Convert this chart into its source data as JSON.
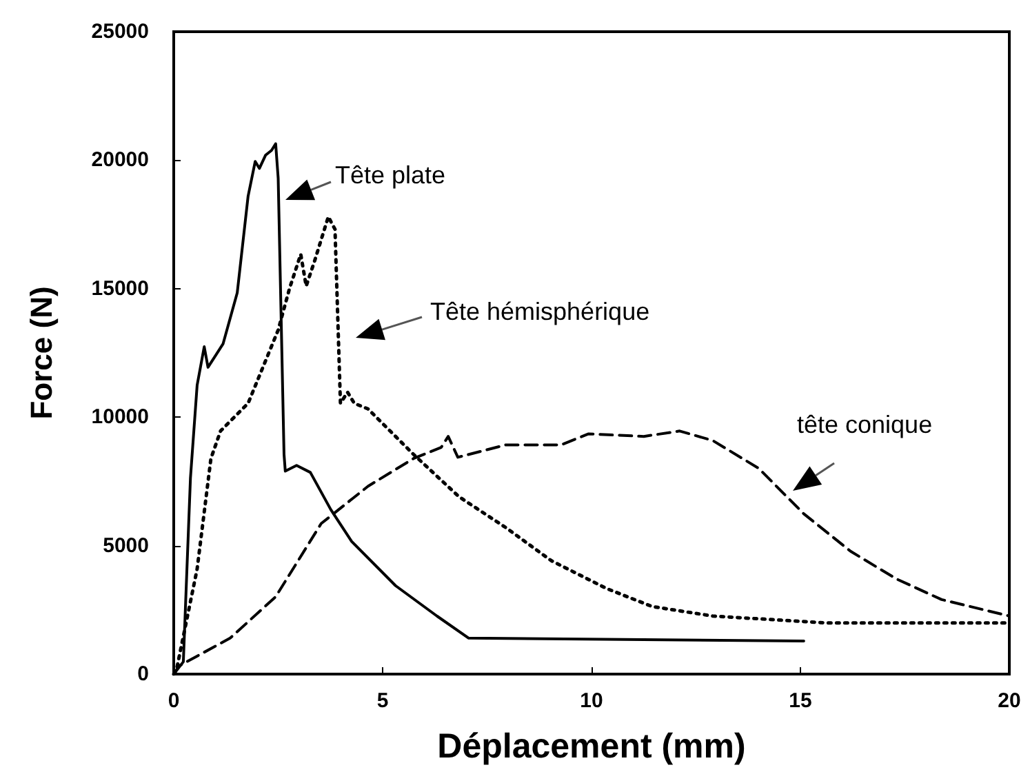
{
  "chart_data": {
    "type": "line",
    "xlabel": "Déplacement (mm)",
    "ylabel": "Force (N)",
    "xlim": [
      0,
      20
    ],
    "xticks": [
      0,
      5,
      10,
      15,
      20
    ],
    "ylim": [
      0,
      25000
    ],
    "yticks": [
      0,
      5000,
      10000,
      15000,
      20000,
      25000
    ],
    "grid": false,
    "marker": "none",
    "series": [
      {
        "color": "#000000",
        "line_style": "solid",
        "x": [
          0,
          0.23,
          0.4,
          0.56,
          0.73,
          0.82,
          1.18,
          1.52,
          1.78,
          1.95,
          2.05,
          2.2,
          2.34,
          2.44,
          2.5,
          2.64,
          2.67,
          2.94,
          3.27,
          3.76,
          4.26,
          5.31,
          6.3,
          7.06,
          15.08
        ],
        "values": [
          0,
          480,
          7630,
          11240,
          12740,
          11940,
          12850,
          14840,
          18600,
          19950,
          19680,
          20200,
          20380,
          20640,
          19300,
          8550,
          7900,
          8120,
          7850,
          6400,
          5160,
          3440,
          2260,
          1400,
          1290
        ]
      },
      {
        "color": "#000000",
        "line_style": "dotted",
        "x": [
          0,
          0.07,
          0.56,
          0.89,
          1.12,
          1.78,
          2.5,
          2.77,
          3.04,
          3.17,
          3.37,
          3.7,
          3.86,
          3.99,
          4.16,
          4.32,
          4.65,
          5.18,
          5.74,
          6.83,
          7.95,
          9.04,
          10.36,
          11.45,
          12.9,
          15.64,
          20
        ],
        "values": [
          0,
          200,
          4090,
          8390,
          9460,
          10540,
          13390,
          15000,
          16340,
          15100,
          16070,
          17800,
          17310,
          10540,
          10970,
          10540,
          10320,
          9460,
          8550,
          6900,
          5700,
          4410,
          3330,
          2630,
          2260,
          1990,
          1990
        ]
      },
      {
        "color": "#000000",
        "line_style": "dashed",
        "x": [
          0,
          0.13,
          1.35,
          2.44,
          3.53,
          4.65,
          5.74,
          6.4,
          6.57,
          6.8,
          7.95,
          9.27,
          9.93,
          11.25,
          12.11,
          12.9,
          14,
          15.08,
          16.2,
          17.29,
          18.38,
          20
        ],
        "values": [
          0,
          320,
          1400,
          3010,
          5860,
          7310,
          8390,
          8820,
          9250,
          8440,
          8920,
          8920,
          9350,
          9250,
          9460,
          9090,
          8010,
          6240,
          4780,
          3710,
          2900,
          2260
        ]
      }
    ],
    "annotations": [
      "Tête plate",
      "Tête hémisphérique",
      "tête conique"
    ]
  }
}
